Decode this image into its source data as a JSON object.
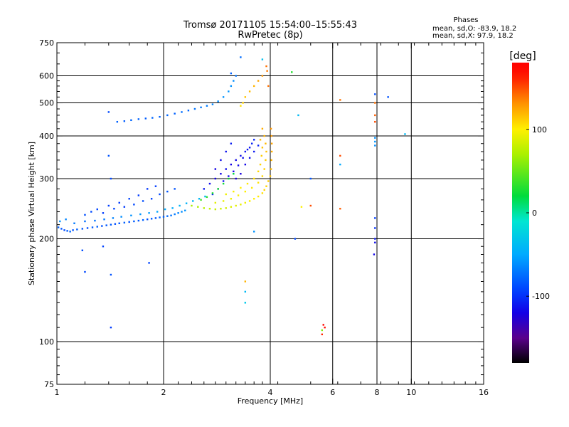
{
  "chart_data": {
    "type": "scatter",
    "title": "Tromsø 20171105 15:54:00–15:55:43",
    "subtitle": "RwPretec (8p)",
    "xlabel": "Frequency [MHz]",
    "ylabel": "Stationary phase Virtual Height [km]",
    "xscale": "log",
    "yscale": "log",
    "xlim": [
      1,
      16
    ],
    "ylim": [
      75,
      750
    ],
    "grid": true,
    "x_ticks": [
      1,
      2,
      4,
      6,
      8,
      10,
      16
    ],
    "y_ticks": [
      75,
      100,
      200,
      300,
      400,
      500,
      600,
      750
    ],
    "legend": {
      "title": "Phases",
      "lines": [
        "mean, sd,O: -83.9, 18.2",
        "mean, sd,X:  97.9, 18.2"
      ],
      "placement": "top-right"
    },
    "colorbar": {
      "label": "[deg]",
      "range": [
        -180,
        180
      ],
      "ticks": [
        100,
        0,
        -100
      ],
      "palette": "rainbow"
    },
    "series": [
      {
        "mode": "O",
        "points": [
          [
            1.01,
            216,
            -80
          ],
          [
            1.03,
            214,
            -85
          ],
          [
            1.05,
            212,
            -90
          ],
          [
            1.07,
            211,
            -82
          ],
          [
            1.09,
            210,
            -78
          ],
          [
            1.11,
            212,
            -86
          ],
          [
            1.14,
            213,
            -80
          ],
          [
            1.18,
            214,
            -84
          ],
          [
            1.22,
            215,
            -88
          ],
          [
            1.26,
            216,
            -82
          ],
          [
            1.3,
            217,
            -80
          ],
          [
            1.34,
            218,
            -86
          ],
          [
            1.38,
            219,
            -84
          ],
          [
            1.42,
            220,
            -82
          ],
          [
            1.46,
            221,
            -88
          ],
          [
            1.5,
            222,
            -84
          ],
          [
            1.55,
            223,
            -80
          ],
          [
            1.6,
            224,
            -86
          ],
          [
            1.65,
            225,
            -82
          ],
          [
            1.7,
            226,
            -84
          ],
          [
            1.75,
            227,
            -80
          ],
          [
            1.8,
            228,
            -86
          ],
          [
            1.85,
            229,
            -82
          ],
          [
            1.9,
            230,
            -84
          ],
          [
            1.95,
            231,
            -78
          ],
          [
            2.0,
            232,
            -80
          ],
          [
            2.05,
            233,
            -76
          ],
          [
            2.1,
            234,
            -72
          ],
          [
            2.15,
            236,
            -70
          ],
          [
            2.2,
            238,
            -66
          ],
          [
            2.25,
            240,
            -62
          ],
          [
            2.3,
            242,
            -60
          ],
          [
            1.02,
            225,
            -60
          ],
          [
            1.06,
            228,
            -65
          ],
          [
            1.12,
            222,
            -70
          ],
          [
            1.2,
            225,
            -75
          ],
          [
            1.28,
            226,
            -72
          ],
          [
            1.36,
            228,
            -70
          ],
          [
            1.44,
            230,
            -66
          ],
          [
            1.52,
            232,
            -62
          ],
          [
            1.62,
            234,
            -60
          ],
          [
            1.72,
            236,
            -58
          ],
          [
            1.82,
            238,
            -55
          ],
          [
            1.92,
            240,
            -52
          ],
          [
            2.02,
            244,
            -50
          ],
          [
            2.12,
            246,
            -48
          ],
          [
            2.22,
            250,
            -45
          ],
          [
            2.32,
            254,
            -44
          ],
          [
            2.42,
            258,
            -42
          ],
          [
            2.52,
            262,
            -40
          ],
          [
            2.62,
            266,
            -38
          ],
          [
            1.25,
            240,
            -90
          ],
          [
            1.35,
            238,
            -95
          ],
          [
            1.45,
            245,
            -92
          ],
          [
            1.55,
            248,
            -96
          ],
          [
            1.65,
            252,
            -90
          ],
          [
            1.75,
            258,
            -88
          ],
          [
            1.85,
            262,
            -92
          ],
          [
            1.95,
            270,
            -90
          ],
          [
            2.05,
            275,
            -85
          ],
          [
            2.15,
            280,
            -86
          ],
          [
            1.7,
            268,
            -95
          ],
          [
            1.8,
            280,
            -98
          ],
          [
            1.9,
            285,
            -94
          ],
          [
            1.6,
            262,
            -92
          ],
          [
            1.5,
            255,
            -96
          ],
          [
            1.4,
            250,
            -94
          ],
          [
            1.3,
            244,
            -92
          ],
          [
            1.2,
            235,
            -88
          ],
          [
            2.6,
            280,
            -110
          ],
          [
            2.7,
            290,
            -115
          ],
          [
            2.8,
            300,
            -120
          ],
          [
            2.9,
            310,
            -118
          ],
          [
            3.0,
            320,
            -115
          ],
          [
            3.1,
            330,
            -120
          ],
          [
            3.2,
            340,
            -118
          ],
          [
            3.3,
            350,
            -115
          ],
          [
            3.4,
            360,
            -112
          ],
          [
            3.5,
            370,
            -110
          ],
          [
            2.75,
            270,
            -105
          ],
          [
            2.85,
            280,
            -108
          ],
          [
            2.95,
            295,
            -112
          ],
          [
            3.05,
            305,
            -116
          ],
          [
            3.15,
            315,
            -120
          ],
          [
            3.25,
            328,
            -118
          ],
          [
            3.35,
            345,
            -114
          ],
          [
            3.45,
            365,
            -110
          ],
          [
            3.55,
            380,
            -106
          ],
          [
            3.6,
            390,
            -104
          ],
          [
            3.1,
            380,
            -108
          ],
          [
            3.0,
            360,
            -112
          ],
          [
            2.9,
            340,
            -116
          ],
          [
            2.8,
            320,
            -120
          ],
          [
            3.2,
            300,
            -125
          ],
          [
            3.3,
            310,
            -122
          ],
          [
            3.4,
            330,
            -118
          ],
          [
            3.5,
            345,
            -114
          ],
          [
            3.6,
            360,
            -110
          ],
          [
            3.7,
            375,
            -106
          ],
          [
            1.48,
            440,
            -80
          ],
          [
            1.55,
            442,
            -82
          ],
          [
            1.62,
            445,
            -78
          ],
          [
            1.7,
            448,
            -80
          ],
          [
            1.78,
            450,
            -82
          ],
          [
            1.86,
            452,
            -78
          ],
          [
            1.95,
            455,
            -80
          ],
          [
            2.05,
            460,
            -78
          ],
          [
            2.15,
            465,
            -80
          ],
          [
            2.25,
            470,
            -75
          ],
          [
            2.35,
            475,
            -78
          ],
          [
            2.45,
            480,
            -72
          ],
          [
            2.55,
            485,
            -70
          ],
          [
            2.65,
            490,
            -68
          ],
          [
            2.75,
            495,
            -65
          ],
          [
            2.85,
            505,
            -62
          ],
          [
            2.95,
            520,
            -60
          ],
          [
            3.05,
            540,
            -58
          ],
          [
            3.1,
            560,
            -60
          ],
          [
            3.15,
            580,
            -62
          ],
          [
            1.4,
            470,
            -90
          ],
          [
            1.4,
            350,
            -85
          ],
          [
            1.42,
            300,
            -90
          ],
          [
            1.35,
            190,
            -92
          ],
          [
            1.18,
            185,
            -88
          ],
          [
            1.2,
            160,
            -90
          ],
          [
            1.42,
            157,
            -86
          ],
          [
            1.42,
            110,
            -95
          ],
          [
            1.82,
            170,
            -92
          ],
          [
            3.3,
            680,
            -75
          ],
          [
            3.1,
            610,
            -80
          ],
          [
            3.2,
            600,
            -72
          ],
          [
            4.7,
            200,
            -90
          ],
          [
            5.2,
            300,
            -85
          ],
          [
            7.9,
            530,
            -88
          ],
          [
            8.6,
            520,
            -86
          ],
          [
            7.9,
            230,
            -95
          ],
          [
            7.9,
            215,
            -100
          ],
          [
            7.9,
            200,
            -110
          ],
          [
            7.9,
            195,
            -115
          ],
          [
            7.85,
            180,
            -118
          ],
          [
            7.9,
            395,
            -60
          ],
          [
            7.9,
            385,
            -58
          ],
          [
            7.9,
            375,
            -62
          ],
          [
            9.6,
            405,
            -40
          ],
          [
            6.3,
            330,
            -50
          ],
          [
            3.6,
            210,
            -60
          ],
          [
            3.4,
            140,
            -40
          ],
          [
            3.4,
            130,
            -30
          ],
          [
            3.8,
            670,
            -35
          ],
          [
            4.8,
            460,
            -40
          ]
        ]
      },
      {
        "mode": "X",
        "points": [
          [
            2.4,
            250,
            70
          ],
          [
            2.5,
            248,
            72
          ],
          [
            2.6,
            246,
            75
          ],
          [
            2.7,
            245,
            78
          ],
          [
            2.8,
            244,
            80
          ],
          [
            2.9,
            245,
            82
          ],
          [
            3.0,
            246,
            85
          ],
          [
            3.1,
            248,
            88
          ],
          [
            3.2,
            250,
            90
          ],
          [
            3.3,
            252,
            92
          ],
          [
            3.4,
            255,
            95
          ],
          [
            3.5,
            258,
            98
          ],
          [
            3.6,
            262,
            100
          ],
          [
            3.7,
            266,
            102
          ],
          [
            3.8,
            272,
            105
          ],
          [
            3.85,
            278,
            108
          ],
          [
            3.9,
            285,
            110
          ],
          [
            3.95,
            295,
            112
          ],
          [
            4.0,
            305,
            115
          ],
          [
            4.02,
            320,
            118
          ],
          [
            4.03,
            340,
            120
          ],
          [
            4.04,
            360,
            122
          ],
          [
            4.04,
            380,
            125
          ],
          [
            4.03,
            400,
            128
          ],
          [
            4.02,
            420,
            130
          ],
          [
            2.8,
            255,
            90
          ],
          [
            2.95,
            258,
            92
          ],
          [
            3.1,
            262,
            95
          ],
          [
            3.25,
            268,
            98
          ],
          [
            3.4,
            275,
            100
          ],
          [
            3.55,
            282,
            102
          ],
          [
            3.7,
            292,
            105
          ],
          [
            3.8,
            305,
            108
          ],
          [
            3.85,
            320,
            110
          ],
          [
            3.88,
            340,
            112
          ],
          [
            3.9,
            360,
            115
          ],
          [
            3.88,
            380,
            118
          ],
          [
            3.85,
            400,
            120
          ],
          [
            3.8,
            420,
            122
          ],
          [
            3.0,
            270,
            95
          ],
          [
            3.15,
            275,
            98
          ],
          [
            3.3,
            282,
            100
          ],
          [
            3.45,
            290,
            103
          ],
          [
            3.6,
            300,
            106
          ],
          [
            3.7,
            315,
            108
          ],
          [
            3.75,
            330,
            110
          ],
          [
            3.78,
            350,
            112
          ],
          [
            3.8,
            370,
            115
          ],
          [
            3.75,
            390,
            118
          ],
          [
            2.55,
            260,
            40
          ],
          [
            2.65,
            265,
            35
          ],
          [
            2.75,
            272,
            30
          ],
          [
            2.85,
            280,
            28
          ],
          [
            2.95,
            290,
            25
          ],
          [
            3.05,
            300,
            22
          ],
          [
            3.15,
            310,
            20
          ],
          [
            3.9,
            640,
            140
          ],
          [
            3.8,
            600,
            130
          ],
          [
            3.7,
            580,
            125
          ],
          [
            3.6,
            560,
            120
          ],
          [
            3.5,
            540,
            118
          ],
          [
            3.4,
            520,
            115
          ],
          [
            3.35,
            500,
            110
          ],
          [
            3.3,
            490,
            105
          ],
          [
            3.95,
            560,
            140
          ],
          [
            3.92,
            620,
            138
          ],
          [
            7.9,
            500,
            140
          ],
          [
            7.9,
            460,
            145
          ],
          [
            7.9,
            440,
            150
          ],
          [
            6.3,
            510,
            140
          ],
          [
            6.3,
            350,
            150
          ],
          [
            6.3,
            245,
            145
          ],
          [
            5.2,
            250,
            150
          ],
          [
            4.9,
            248,
            100
          ],
          [
            3.4,
            150,
            120
          ],
          [
            5.6,
            105,
            160
          ],
          [
            5.65,
            112,
            175
          ],
          [
            5.7,
            110,
            170
          ],
          [
            5.6,
            108,
            60
          ],
          [
            4.6,
            615,
            30
          ]
        ]
      }
    ]
  }
}
